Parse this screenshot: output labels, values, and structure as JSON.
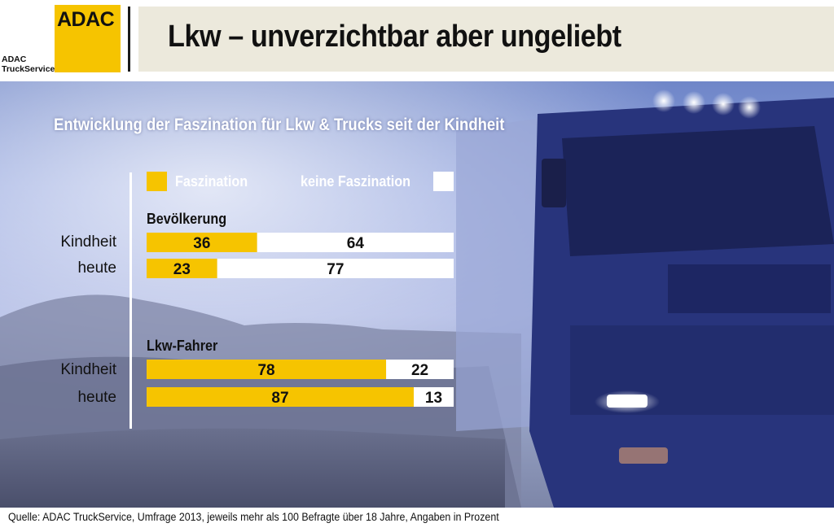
{
  "header": {
    "logo_text": "ADAC",
    "brand_line1": "ADAC",
    "brand_line2": "TruckService",
    "title": "Lkw – unverzichtbar aber ungeliebt"
  },
  "colors": {
    "faszination": "#f6c400",
    "keine_faszination": "#ffffff",
    "brand": "#f6c400"
  },
  "chart_data": {
    "type": "bar",
    "title": "Entwicklung der Faszination für Lkw & Trucks seit der Kindheit",
    "legend": [
      "Faszination",
      "keine Faszination"
    ],
    "groups": [
      {
        "name": "Bevölkerung",
        "rows": [
          {
            "label": "Kindheit",
            "faszination": 36,
            "keine": 64
          },
          {
            "label": "heute",
            "faszination": 23,
            "keine": 77
          }
        ]
      },
      {
        "name": "Lkw-Fahrer",
        "rows": [
          {
            "label": "Kindheit",
            "faszination": 78,
            "keine": 22
          },
          {
            "label": "heute",
            "faszination": 87,
            "keine": 13
          }
        ]
      }
    ],
    "ylim": [
      0,
      100
    ]
  },
  "footer": {
    "source": "Quelle: ADAC TruckService, Umfrage 2013, jeweils mehr als 100 Befragte über 18 Jahre, Angaben in Prozent"
  }
}
